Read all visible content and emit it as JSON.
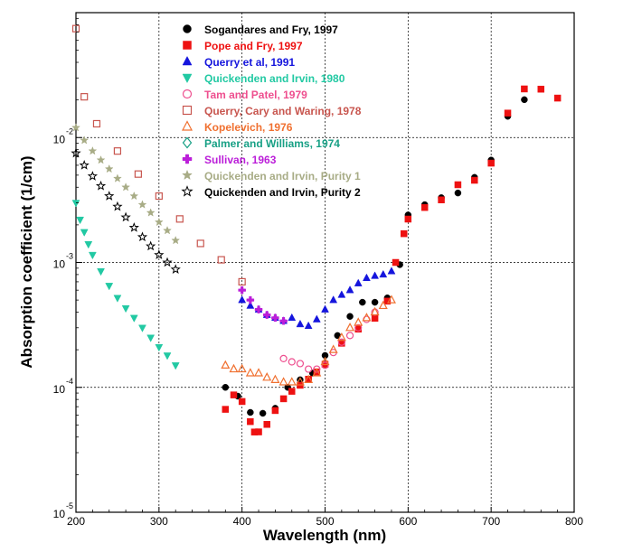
{
  "chart_data": {
    "type": "scatter",
    "xlabel": "Wavelength (nm)",
    "ylabel": "Absorption coefficient (1/cm)",
    "xlim": [
      200,
      800
    ],
    "ylim_log10": [
      -5,
      -1
    ],
    "y_scale": "log",
    "grid": true,
    "legend_position": "top-center",
    "x_ticks": [
      "200",
      "300",
      "400",
      "500",
      "600",
      "700",
      "800"
    ],
    "y_ticks": [
      {
        "base": "10",
        "exp": "-5"
      },
      {
        "base": "10",
        "exp": "-4"
      },
      {
        "base": "10",
        "exp": "-3"
      },
      {
        "base": "10",
        "exp": "-2"
      }
    ],
    "series": [
      {
        "name": "Sogandares and Fry, 1997",
        "color": "#000000",
        "marker": "circle-filled",
        "x": [
          380,
          395,
          410,
          425,
          440,
          455,
          470,
          485,
          500,
          515,
          530,
          545,
          560,
          575,
          590,
          600,
          620,
          640,
          660,
          680,
          700,
          720,
          740
        ],
        "y": [
          0.0001,
          8.5e-05,
          6.3e-05,
          6.2e-05,
          6.8e-05,
          0.0001,
          0.000115,
          0.00013,
          0.00018,
          0.00026,
          0.00037,
          0.00048,
          0.00048,
          0.00052,
          0.00096,
          0.0024,
          0.0029,
          0.0033,
          0.0036,
          0.0048,
          0.0066,
          0.0148,
          0.0201
        ]
      },
      {
        "name": "Pope and Fry, 1997",
        "color": "#ee1111",
        "marker": "square-filled",
        "x": [
          380,
          390,
          400,
          410,
          415,
          420,
          430,
          440,
          450,
          460,
          470,
          480,
          490,
          500,
          520,
          540,
          560,
          575,
          585,
          595,
          600,
          620,
          640,
          660,
          680,
          700,
          720,
          740,
          760,
          780
        ],
        "y": [
          6.67e-05,
          8.7e-05,
          7.7e-05,
          5.32e-05,
          4.39e-05,
          4.4e-05,
          5.05e-05,
          6.52e-05,
          8.1e-05,
          9.3e-05,
          0.0001039,
          0.0001162,
          0.000133,
          0.0001531,
          0.0002255,
          0.0002926,
          0.0003575,
          0.00049,
          0.001,
          0.0017,
          0.002224,
          0.002755,
          0.00317,
          0.00419,
          0.00455,
          0.00624,
          0.0157,
          0.0245,
          0.0244,
          0.0207
        ]
      },
      {
        "name": "Querry et al, 1991",
        "color": "#1515dd",
        "marker": "triangle-up-filled",
        "x": [
          400,
          410,
          420,
          430,
          440,
          450,
          460,
          470,
          480,
          490,
          500,
          510,
          520,
          530,
          540,
          550,
          560,
          570,
          580
        ],
        "y": [
          0.0005,
          0.00045,
          0.00042,
          0.00038,
          0.00036,
          0.00034,
          0.00036,
          0.00032,
          0.00031,
          0.00035,
          0.00042,
          0.0005,
          0.00055,
          0.0006,
          0.00068,
          0.00075,
          0.00078,
          0.0008,
          0.00085
        ]
      },
      {
        "name": "Quickenden and Irvin, 1980",
        "color": "#22c9a3",
        "marker": "triangle-down-filled",
        "x": [
          200,
          205,
          210,
          215,
          220,
          230,
          240,
          250,
          260,
          270,
          280,
          290,
          300,
          310,
          320
        ],
        "y": [
          0.003,
          0.0022,
          0.00175,
          0.0014,
          0.00115,
          0.00085,
          0.00065,
          0.00052,
          0.00043,
          0.00036,
          0.0003,
          0.00025,
          0.00021,
          0.00018,
          0.00015
        ]
      },
      {
        "name": "Tam and Patel, 1979",
        "color": "#ee4f8f",
        "marker": "circle-open",
        "x": [
          450,
          460,
          470,
          480,
          490,
          500,
          510,
          520,
          530,
          540,
          550,
          560
        ],
        "y": [
          0.00017,
          0.00016,
          0.000155,
          0.00014,
          0.00014,
          0.00015,
          0.00019,
          0.00023,
          0.00026,
          0.0003,
          0.00035,
          0.0004
        ]
      },
      {
        "name": "Querry, Cary and Waring, 1978",
        "color": "#c8564f",
        "marker": "square-open",
        "x": [
          200,
          210,
          225,
          250,
          275,
          300,
          325,
          350,
          375,
          400
        ],
        "y": [
          0.0745,
          0.0212,
          0.0129,
          0.0078,
          0.0051,
          0.0034,
          0.00223,
          0.00142,
          0.00105,
          0.0007
        ]
      },
      {
        "name": "Kopelevich, 1976",
        "color": "#f07030",
        "marker": "triangle-up-open",
        "x": [
          380,
          390,
          400,
          410,
          420,
          430,
          440,
          450,
          460,
          470,
          480,
          490,
          500,
          510,
          520,
          530,
          540,
          550,
          560,
          570,
          580
        ],
        "y": [
          0.00015,
          0.00014,
          0.00014,
          0.00013,
          0.00013,
          0.00012,
          0.000115,
          0.00011,
          0.00011,
          0.00011,
          0.000115,
          0.00013,
          0.00016,
          0.0002,
          0.00025,
          0.0003,
          0.00033,
          0.00036,
          0.0004,
          0.00045,
          0.0005
        ]
      },
      {
        "name": "Palmer and Williams, 1974",
        "color": "#17a085",
        "marker": "diamond-open",
        "x": [],
        "y": []
      },
      {
        "name": "Sullivan, 1963",
        "color": "#bb1ed9",
        "marker": "cross-filled",
        "x": [
          400,
          410,
          420,
          430,
          440,
          450
        ],
        "y": [
          0.0006,
          0.0005,
          0.00042,
          0.00038,
          0.00036,
          0.00034
        ]
      },
      {
        "name": "Quickenden and Irvin, Purity 1",
        "color": "#a8ac86",
        "marker": "star-filled",
        "x": [
          200,
          210,
          220,
          230,
          240,
          250,
          260,
          270,
          280,
          290,
          300,
          310,
          320
        ],
        "y": [
          0.012,
          0.0095,
          0.0078,
          0.0066,
          0.0056,
          0.0047,
          0.004,
          0.0034,
          0.0029,
          0.0025,
          0.0021,
          0.0018,
          0.0015
        ]
      },
      {
        "name": "Quickenden and Irvin, Purity 2",
        "color": "#000000",
        "marker": "star-open",
        "x": [
          200,
          210,
          220,
          230,
          240,
          250,
          260,
          270,
          280,
          290,
          300,
          310,
          320
        ],
        "y": [
          0.0075,
          0.006,
          0.0049,
          0.0041,
          0.0034,
          0.0028,
          0.0023,
          0.0019,
          0.0016,
          0.00135,
          0.00115,
          0.001,
          0.00088
        ]
      }
    ]
  }
}
